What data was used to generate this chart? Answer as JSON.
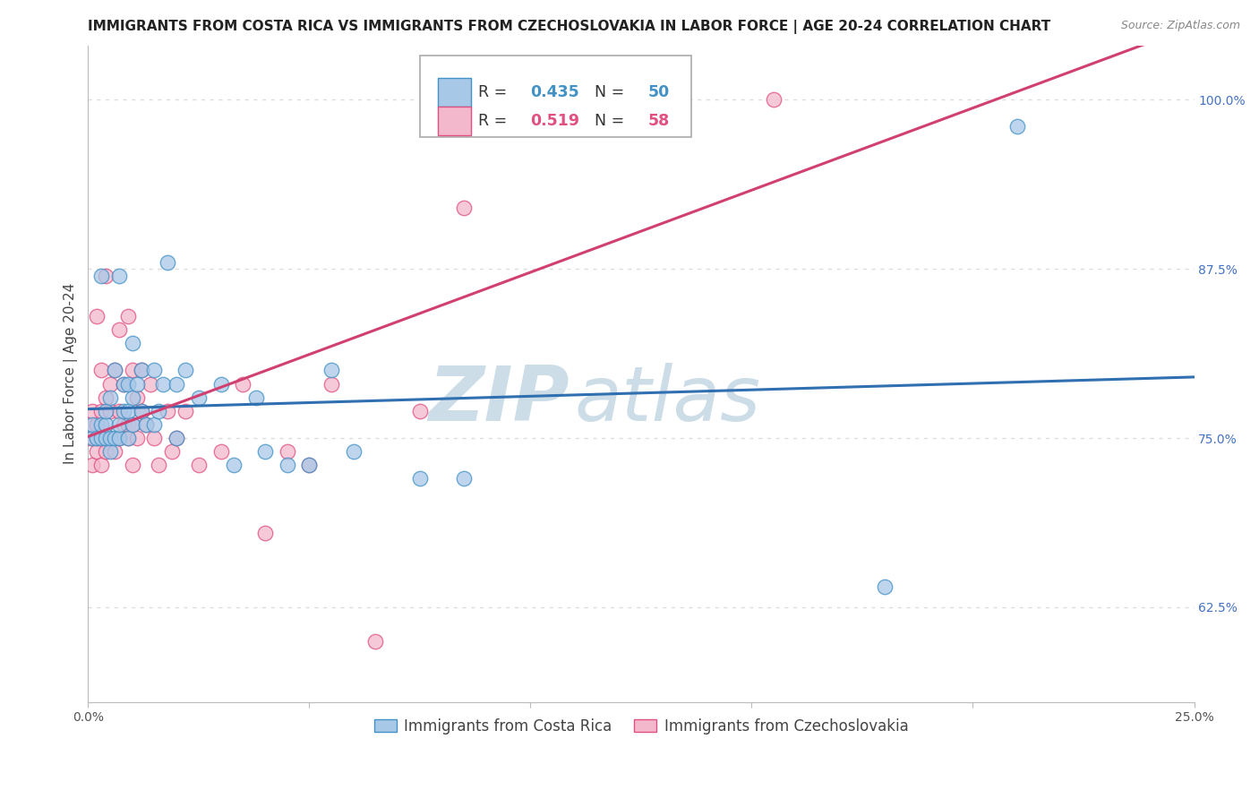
{
  "title": "IMMIGRANTS FROM COSTA RICA VS IMMIGRANTS FROM CZECHOSLOVAKIA IN LABOR FORCE | AGE 20-24 CORRELATION CHART",
  "source": "Source: ZipAtlas.com",
  "ylabel": "In Labor Force | Age 20-24",
  "xlim": [
    0.0,
    0.25
  ],
  "ylim": [
    0.555,
    1.04
  ],
  "xticks": [
    0.0,
    0.05,
    0.1,
    0.15,
    0.2,
    0.25
  ],
  "xticklabels": [
    "0.0%",
    "",
    "",
    "",
    "",
    "25.0%"
  ],
  "ytick_positions": [
    0.625,
    0.75,
    0.875,
    1.0
  ],
  "ytick_labels": [
    "62.5%",
    "75.0%",
    "87.5%",
    "100.0%"
  ],
  "blue_color": "#a8c8e8",
  "pink_color": "#f4b8cc",
  "blue_edge": "#4292c6",
  "pink_edge": "#e05080",
  "blue_line_color": "#3070b0",
  "pink_line_color": "#d04070",
  "blue_R": 0.435,
  "blue_N": 50,
  "pink_R": 0.519,
  "pink_N": 58,
  "blue_scatter_x": [
    0.001,
    0.001,
    0.002,
    0.003,
    0.003,
    0.003,
    0.004,
    0.004,
    0.004,
    0.005,
    0.005,
    0.005,
    0.006,
    0.006,
    0.007,
    0.007,
    0.007,
    0.008,
    0.008,
    0.009,
    0.009,
    0.009,
    0.01,
    0.01,
    0.01,
    0.011,
    0.012,
    0.012,
    0.013,
    0.015,
    0.015,
    0.016,
    0.017,
    0.018,
    0.02,
    0.02,
    0.022,
    0.025,
    0.03,
    0.033,
    0.038,
    0.04,
    0.045,
    0.05,
    0.055,
    0.06,
    0.075,
    0.085,
    0.18,
    0.21
  ],
  "blue_scatter_y": [
    0.75,
    0.76,
    0.75,
    0.75,
    0.76,
    0.87,
    0.75,
    0.76,
    0.77,
    0.74,
    0.75,
    0.78,
    0.75,
    0.8,
    0.75,
    0.76,
    0.87,
    0.77,
    0.79,
    0.75,
    0.77,
    0.79,
    0.76,
    0.78,
    0.82,
    0.79,
    0.77,
    0.8,
    0.76,
    0.76,
    0.8,
    0.77,
    0.79,
    0.88,
    0.75,
    0.79,
    0.8,
    0.78,
    0.79,
    0.73,
    0.78,
    0.74,
    0.73,
    0.73,
    0.8,
    0.74,
    0.72,
    0.72,
    0.64,
    0.98
  ],
  "pink_scatter_x": [
    0.0,
    0.0,
    0.001,
    0.001,
    0.001,
    0.002,
    0.002,
    0.002,
    0.002,
    0.003,
    0.003,
    0.003,
    0.003,
    0.004,
    0.004,
    0.004,
    0.004,
    0.005,
    0.005,
    0.005,
    0.006,
    0.006,
    0.007,
    0.007,
    0.007,
    0.008,
    0.008,
    0.009,
    0.009,
    0.009,
    0.01,
    0.01,
    0.01,
    0.011,
    0.011,
    0.012,
    0.012,
    0.013,
    0.014,
    0.015,
    0.016,
    0.018,
    0.019,
    0.02,
    0.022,
    0.025,
    0.03,
    0.035,
    0.04,
    0.045,
    0.05,
    0.055,
    0.065,
    0.075,
    0.085,
    0.095,
    0.12,
    0.155
  ],
  "pink_scatter_y": [
    0.75,
    0.76,
    0.73,
    0.75,
    0.77,
    0.74,
    0.75,
    0.76,
    0.84,
    0.73,
    0.75,
    0.77,
    0.8,
    0.74,
    0.75,
    0.78,
    0.87,
    0.75,
    0.77,
    0.79,
    0.74,
    0.8,
    0.75,
    0.77,
    0.83,
    0.76,
    0.79,
    0.75,
    0.76,
    0.84,
    0.73,
    0.76,
    0.8,
    0.75,
    0.78,
    0.77,
    0.8,
    0.76,
    0.79,
    0.75,
    0.73,
    0.77,
    0.74,
    0.75,
    0.77,
    0.73,
    0.74,
    0.79,
    0.68,
    0.74,
    0.73,
    0.79,
    0.6,
    0.77,
    0.92,
    0.98,
    0.98,
    1.0
  ],
  "watermark_zip": "ZIP",
  "watermark_atlas": "atlas",
  "watermark_color": "#ccdde8",
  "background_color": "#ffffff",
  "grid_color": "#dddddd",
  "title_fontsize": 11,
  "axis_label_fontsize": 11,
  "tick_fontsize": 10
}
